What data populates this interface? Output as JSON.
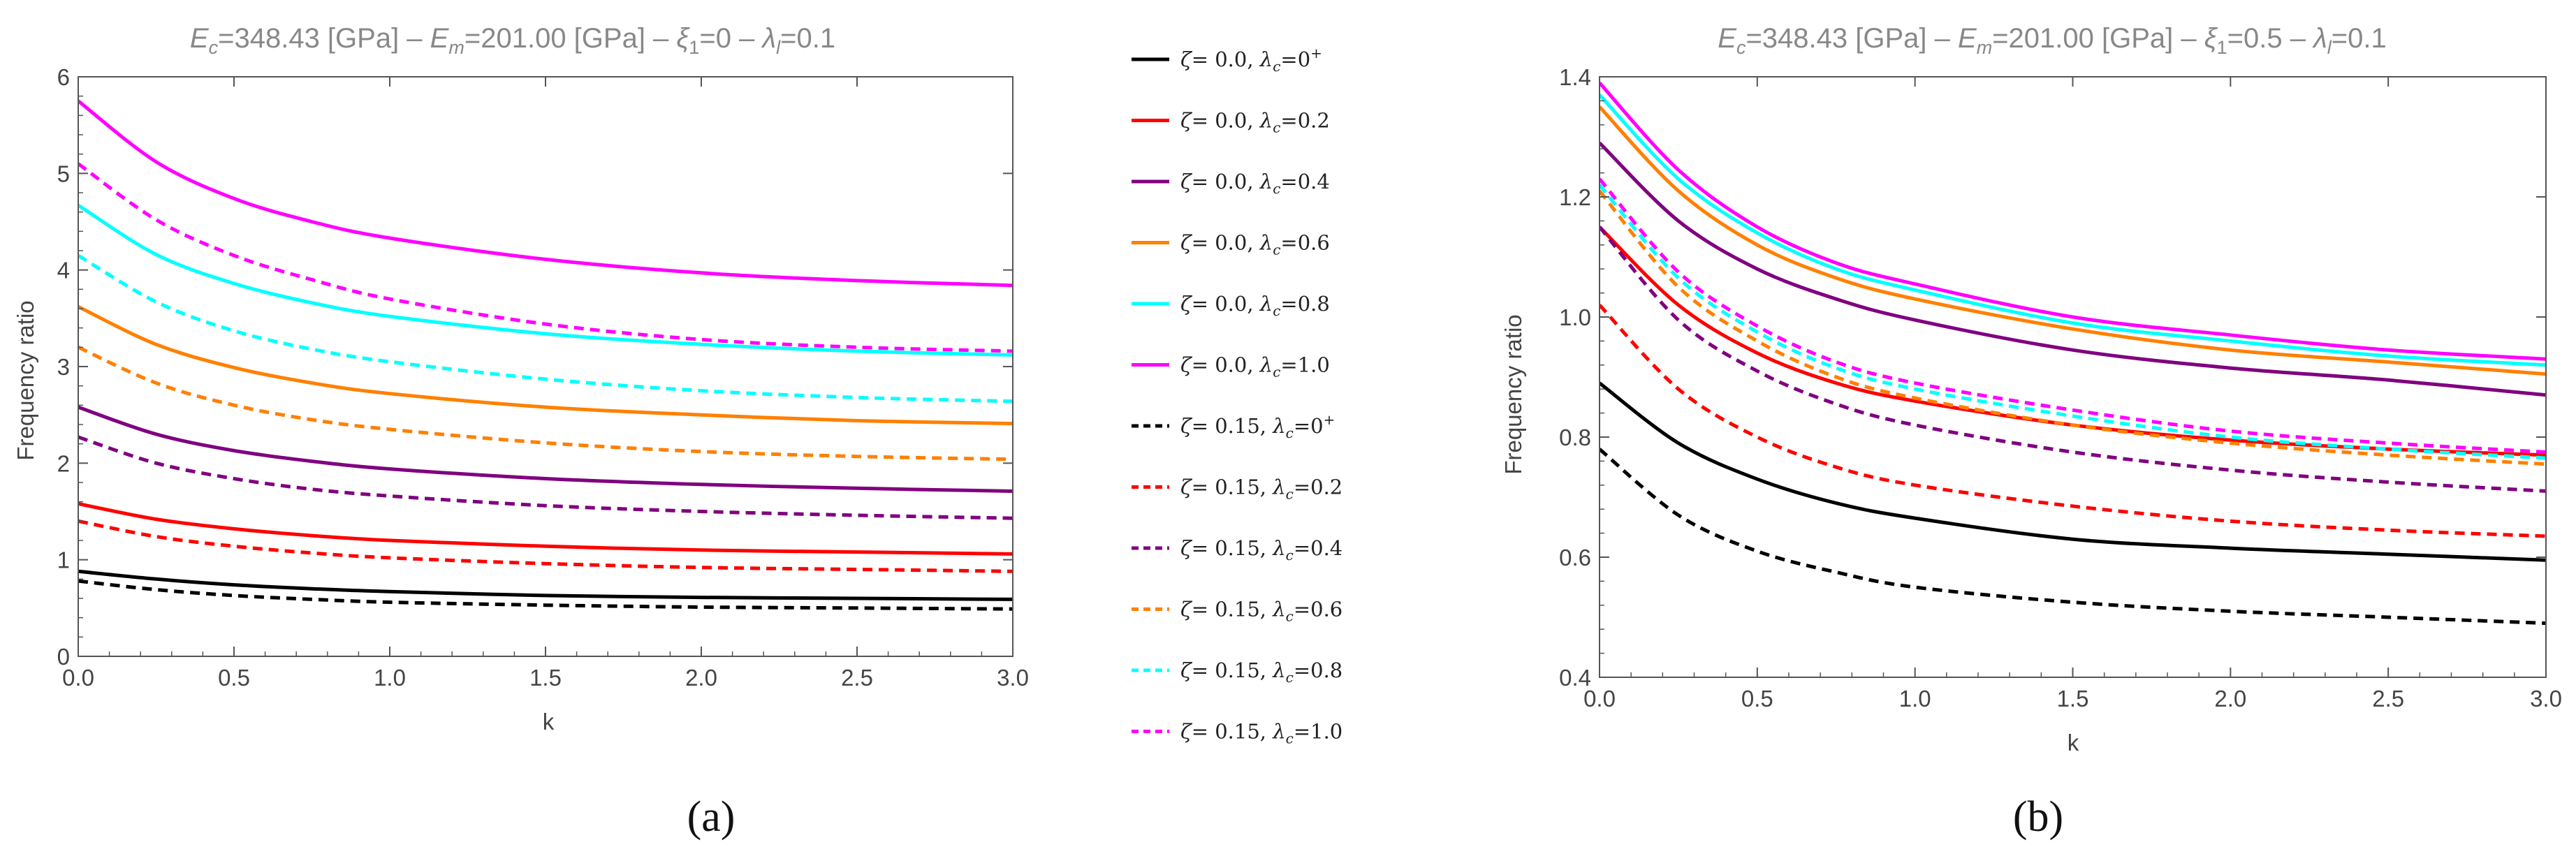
{
  "chart_data": [
    {
      "type": "line",
      "panel": "(a)",
      "title": "E_c=348.43 [GPa] – E_m=201.00 [GPa] – ξ_1=0 – λ_l=0.1",
      "title_parts": {
        "ec_label": "E",
        "ec_sub": "c",
        "ec_value": "=348.43 [GPa] – ",
        "em_label": "E",
        "em_sub": "m",
        "em_value": "=201.00 [GPa] – ",
        "xi_label": "ξ",
        "xi_sub": "1",
        "xi_value": "=0 – ",
        "ll_label": "λ",
        "ll_sub": "l",
        "ll_value": "=0.1"
      },
      "xlabel": "k",
      "ylabel": "Frequency ratio",
      "xlim": [
        0,
        3
      ],
      "ylim": [
        0,
        6
      ],
      "xticks": [
        "0.0",
        "0.5",
        "1.0",
        "1.5",
        "2.0",
        "2.5",
        "3.0"
      ],
      "yticks": [
        "0",
        "1",
        "2",
        "3",
        "4",
        "5",
        "6"
      ],
      "x": [
        0,
        0.25,
        0.5,
        0.75,
        1.0,
        1.5,
        2.0,
        2.5,
        3.0
      ],
      "series": [
        {
          "name": "ζ = 0.0, λc=0⁺",
          "color": "#000000",
          "dash": false,
          "values": [
            0.88,
            0.8,
            0.74,
            0.7,
            0.67,
            0.63,
            0.61,
            0.6,
            0.59
          ]
        },
        {
          "name": "ζ = 0.0, λc=0.2",
          "color": "#ff0000",
          "dash": false,
          "values": [
            1.58,
            1.42,
            1.32,
            1.25,
            1.2,
            1.14,
            1.1,
            1.08,
            1.06
          ]
        },
        {
          "name": "ζ = 0.0, λc=0.4",
          "color": "#800080",
          "dash": false,
          "values": [
            2.58,
            2.3,
            2.13,
            2.02,
            1.94,
            1.84,
            1.78,
            1.74,
            1.71
          ]
        },
        {
          "name": "ζ = 0.0, λc=0.6",
          "color": "#ff8000",
          "dash": false,
          "values": [
            3.62,
            3.23,
            2.99,
            2.83,
            2.72,
            2.58,
            2.5,
            2.44,
            2.41
          ]
        },
        {
          "name": "ζ = 0.0, λc=0.8",
          "color": "#00ffff",
          "dash": false,
          "values": [
            4.67,
            4.16,
            3.86,
            3.66,
            3.52,
            3.34,
            3.23,
            3.16,
            3.12
          ]
        },
        {
          "name": "ζ = 0.0, λc=1.0",
          "color": "#ff00ff",
          "dash": false,
          "values": [
            5.75,
            5.12,
            4.74,
            4.5,
            4.33,
            4.11,
            3.97,
            3.89,
            3.84
          ]
        },
        {
          "name": "ζ = 0.15, λc=0⁺",
          "color": "#000000",
          "dash": true,
          "values": [
            0.78,
            0.69,
            0.63,
            0.59,
            0.56,
            0.53,
            0.51,
            0.5,
            0.49
          ]
        },
        {
          "name": "ζ = 0.15, λc=0.2",
          "color": "#ff0000",
          "dash": true,
          "values": [
            1.4,
            1.24,
            1.14,
            1.07,
            1.02,
            0.96,
            0.92,
            0.9,
            0.88
          ]
        },
        {
          "name": "ζ = 0.15, λc=0.4",
          "color": "#800080",
          "dash": true,
          "values": [
            2.27,
            2.0,
            1.84,
            1.73,
            1.66,
            1.56,
            1.5,
            1.46,
            1.43
          ]
        },
        {
          "name": "ζ = 0.15, λc=0.6",
          "color": "#ff8000",
          "dash": true,
          "values": [
            3.2,
            2.83,
            2.6,
            2.45,
            2.35,
            2.21,
            2.12,
            2.07,
            2.04
          ]
        },
        {
          "name": "ζ = 0.15, λc=0.8",
          "color": "#00ffff",
          "dash": true,
          "values": [
            4.15,
            3.67,
            3.37,
            3.18,
            3.05,
            2.87,
            2.75,
            2.68,
            2.64
          ]
        },
        {
          "name": "ζ = 0.15, λc=1.0",
          "color": "#ff00ff",
          "dash": true,
          "values": [
            5.1,
            4.52,
            4.15,
            3.9,
            3.7,
            3.44,
            3.28,
            3.2,
            3.16
          ]
        }
      ]
    },
    {
      "type": "line",
      "panel": "(b)",
      "title": "E_c=348.43 [GPa] – E_m=201.00 [GPa] – ξ_1=0.5 – λ_l=0.1",
      "title_parts": {
        "ec_label": "E",
        "ec_sub": "c",
        "ec_value": "=348.43 [GPa] – ",
        "em_label": "E",
        "em_sub": "m",
        "em_value": "=201.00 [GPa] – ",
        "xi_label": "ξ",
        "xi_sub": "1",
        "xi_value": "=0.5 – ",
        "ll_label": "λ",
        "ll_sub": "l",
        "ll_value": "=0.1"
      },
      "xlabel": "k",
      "ylabel": "Frequency ratio",
      "xlim": [
        0,
        3
      ],
      "ylim": [
        0.4,
        1.4
      ],
      "xticks": [
        "0.0",
        "0.5",
        "1.0",
        "1.5",
        "2.0",
        "2.5",
        "3.0"
      ],
      "yticks": [
        "0.4",
        "0.6",
        "0.8",
        "1.0",
        "1.2",
        "1.4"
      ],
      "x": [
        0,
        0.25,
        0.5,
        0.75,
        1.0,
        1.5,
        2.0,
        2.5,
        3.0
      ],
      "series": [
        {
          "name": "ζ = 0.0, λc=0⁺",
          "color": "#000000",
          "dash": false,
          "values": [
            0.89,
            0.79,
            0.73,
            0.69,
            0.665,
            0.63,
            0.615,
            0.605,
            0.595
          ]
        },
        {
          "name": "ζ = 0.0, λc=0.2",
          "color": "#ff0000",
          "dash": false,
          "values": [
            1.15,
            1.02,
            0.94,
            0.89,
            0.86,
            0.82,
            0.795,
            0.78,
            0.77
          ]
        },
        {
          "name": "ζ = 0.0, λc=0.4",
          "color": "#800080",
          "dash": false,
          "values": [
            1.29,
            1.16,
            1.08,
            1.03,
            0.995,
            0.945,
            0.915,
            0.895,
            0.87
          ]
        },
        {
          "name": "ζ = 0.0, λc=0.6",
          "color": "#ff8000",
          "dash": false,
          "values": [
            1.35,
            1.21,
            1.12,
            1.065,
            1.03,
            0.98,
            0.945,
            0.925,
            0.905
          ]
        },
        {
          "name": "ζ = 0.0, λc=0.8",
          "color": "#00ffff",
          "dash": false,
          "values": [
            1.37,
            1.23,
            1.14,
            1.08,
            1.045,
            0.99,
            0.96,
            0.935,
            0.92
          ]
        },
        {
          "name": "ζ = 0.0, λc=1.0",
          "color": "#ff00ff",
          "dash": false,
          "values": [
            1.39,
            1.245,
            1.15,
            1.09,
            1.055,
            1.0,
            0.97,
            0.945,
            0.93
          ]
        },
        {
          "name": "ζ = 0.15, λc=0⁺",
          "color": "#000000",
          "dash": true,
          "values": [
            0.78,
            0.67,
            0.61,
            0.575,
            0.55,
            0.525,
            0.51,
            0.5,
            0.49
          ]
        },
        {
          "name": "ζ = 0.15, λc=0.2",
          "color": "#ff0000",
          "dash": true,
          "values": [
            1.02,
            0.88,
            0.8,
            0.75,
            0.72,
            0.685,
            0.66,
            0.645,
            0.635
          ]
        },
        {
          "name": "ζ = 0.15, λc=0.4",
          "color": "#800080",
          "dash": true,
          "values": [
            1.15,
            0.995,
            0.91,
            0.855,
            0.82,
            0.775,
            0.745,
            0.725,
            0.71
          ]
        },
        {
          "name": "ζ = 0.15, λc=0.6",
          "color": "#ff8000",
          "dash": true,
          "values": [
            1.21,
            1.05,
            0.96,
            0.9,
            0.865,
            0.82,
            0.79,
            0.77,
            0.755
          ]
        },
        {
          "name": "ζ = 0.15, λc=0.8",
          "color": "#00ffff",
          "dash": true,
          "values": [
            1.22,
            1.065,
            0.975,
            0.915,
            0.88,
            0.835,
            0.8,
            0.78,
            0.765
          ]
        },
        {
          "name": "ζ = 0.15, λc=1.0",
          "color": "#ff00ff",
          "dash": true,
          "values": [
            1.23,
            1.075,
            0.985,
            0.925,
            0.89,
            0.845,
            0.81,
            0.79,
            0.775
          ]
        }
      ]
    }
  ],
  "legend": {
    "items": [
      {
        "zeta": "ζ",
        "zeta_val": "= 0.0, ",
        "lam": "λ",
        "lam_sub": "c",
        "lam_val": "=0",
        "lam_sup": "+",
        "color": "#000000",
        "dash": false
      },
      {
        "zeta": "ζ",
        "zeta_val": "= 0.0, ",
        "lam": "λ",
        "lam_sub": "c",
        "lam_val": "=0.2",
        "lam_sup": "",
        "color": "#ff0000",
        "dash": false
      },
      {
        "zeta": "ζ",
        "zeta_val": "= 0.0, ",
        "lam": "λ",
        "lam_sub": "c",
        "lam_val": "=0.4",
        "lam_sup": "",
        "color": "#800080",
        "dash": false
      },
      {
        "zeta": "ζ",
        "zeta_val": "= 0.0, ",
        "lam": "λ",
        "lam_sub": "c",
        "lam_val": "=0.6",
        "lam_sup": "",
        "color": "#ff8000",
        "dash": false
      },
      {
        "zeta": "ζ",
        "zeta_val": "= 0.0, ",
        "lam": "λ",
        "lam_sub": "c",
        "lam_val": "=0.8",
        "lam_sup": "",
        "color": "#00ffff",
        "dash": false
      },
      {
        "zeta": "ζ",
        "zeta_val": "= 0.0, ",
        "lam": "λ",
        "lam_sub": "c",
        "lam_val": "=1.0",
        "lam_sup": "",
        "color": "#ff00ff",
        "dash": false
      },
      {
        "zeta": "ζ",
        "zeta_val": "= 0.15, ",
        "lam": "λ",
        "lam_sub": "c",
        "lam_val": "=0",
        "lam_sup": "+",
        "color": "#000000",
        "dash": true
      },
      {
        "zeta": "ζ",
        "zeta_val": "= 0.15, ",
        "lam": "λ",
        "lam_sub": "c",
        "lam_val": "=0.2",
        "lam_sup": "",
        "color": "#ff0000",
        "dash": true
      },
      {
        "zeta": "ζ",
        "zeta_val": "= 0.15, ",
        "lam": "λ",
        "lam_sub": "c",
        "lam_val": "=0.4",
        "lam_sup": "",
        "color": "#800080",
        "dash": true
      },
      {
        "zeta": "ζ",
        "zeta_val": "= 0.15, ",
        "lam": "λ",
        "lam_sub": "c",
        "lam_val": "=0.6",
        "lam_sup": "",
        "color": "#ff8000",
        "dash": true
      },
      {
        "zeta": "ζ",
        "zeta_val": "= 0.15, ",
        "lam": "λ",
        "lam_sub": "c",
        "lam_val": "=0.8",
        "lam_sup": "",
        "color": "#00ffff",
        "dash": true
      },
      {
        "zeta": "ζ",
        "zeta_val": "= 0.15, ",
        "lam": "λ",
        "lam_sub": "c",
        "lam_val": "=1.0",
        "lam_sup": "",
        "color": "#ff00ff",
        "dash": true
      }
    ]
  },
  "captions": {
    "a": "(a)",
    "b": "(b)"
  }
}
